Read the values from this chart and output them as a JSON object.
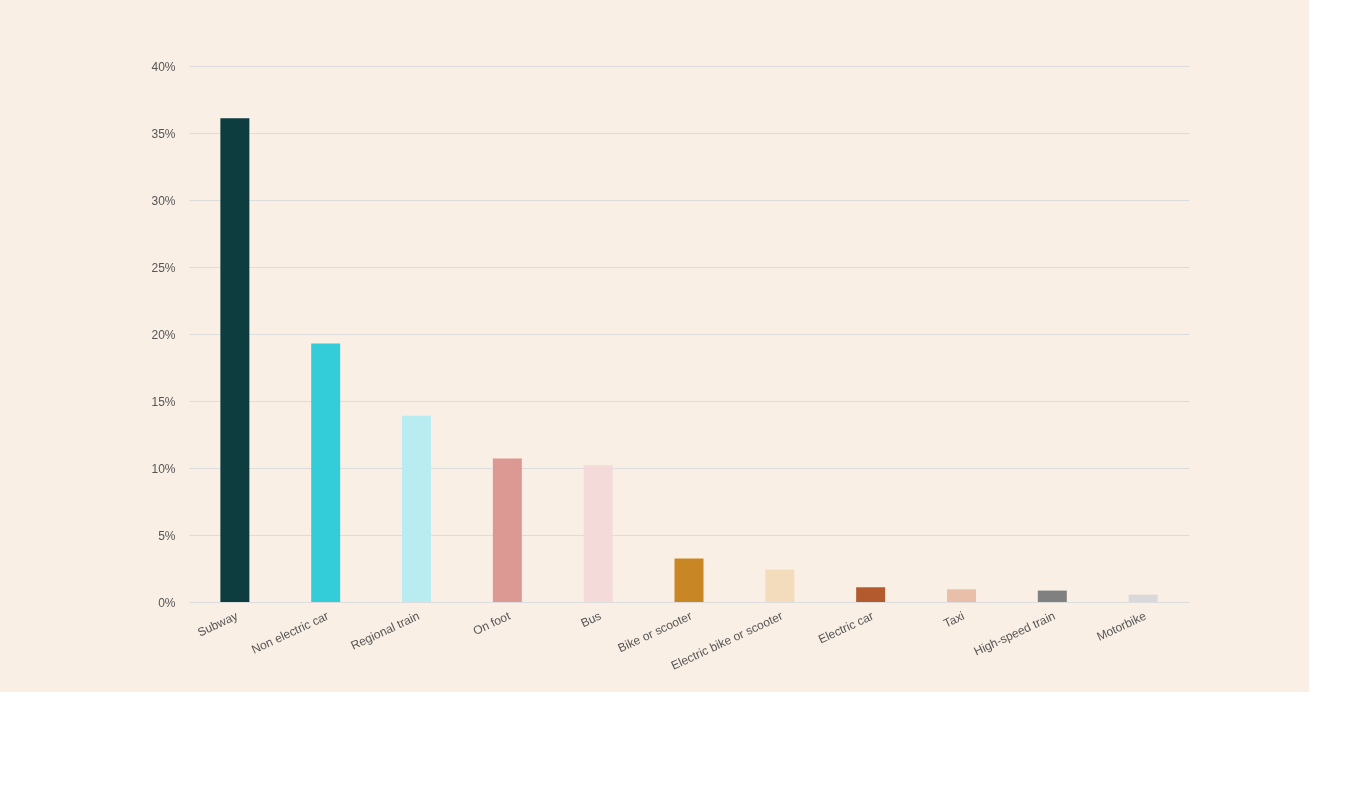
{
  "chart_data": {
    "type": "bar",
    "categories": [
      "Subway",
      "Non electric car",
      "Regional train",
      "On foot",
      "Bus",
      "Bike or scooter",
      "Electric bike or scooter",
      "Electric car",
      "Taxi",
      "High-speed train",
      "Motorbike"
    ],
    "values": [
      36.1,
      19.3,
      13.9,
      10.7,
      10.2,
      3.25,
      2.4,
      1.1,
      0.95,
      0.85,
      0.55
    ],
    "colors": [
      "#0d3d3f",
      "#33cdd9",
      "#b8ecf0",
      "#dc9893",
      "#f4dbd9",
      "#c98625",
      "#f3dcbc",
      "#b35a2e",
      "#e9bfa9",
      "#808080",
      "#d9d9d9"
    ],
    "ylim": [
      0,
      40
    ],
    "yticks": [
      {
        "value": 0,
        "label": "0%"
      },
      {
        "value": 5,
        "label": "5%"
      },
      {
        "value": 10,
        "label": "10%"
      },
      {
        "value": 15,
        "label": "15%"
      },
      {
        "value": 20,
        "label": "20%"
      },
      {
        "value": 25,
        "label": "25%"
      },
      {
        "value": 30,
        "label": "30%"
      },
      {
        "value": 35,
        "label": "35%"
      },
      {
        "value": 40,
        "label": "40%"
      }
    ],
    "grid": "y",
    "legend": false
  }
}
